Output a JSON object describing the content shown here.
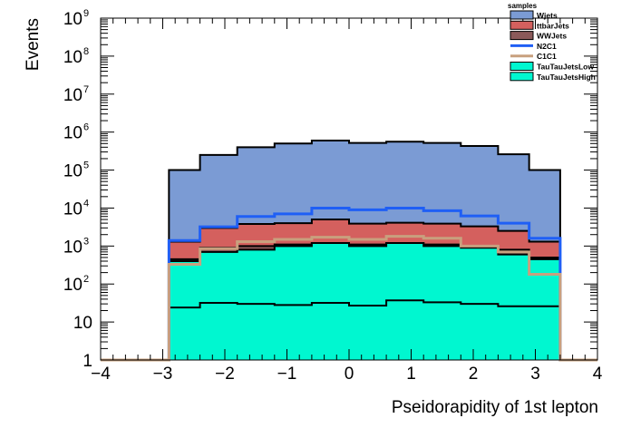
{
  "chart_data": {
    "type": "area",
    "ylabel": "Events",
    "xlabel": "Pseidorapidity of 1st lepton",
    "xlim": [
      -4,
      4
    ],
    "ylim": [
      1,
      1000000000
    ],
    "yscale": "log",
    "x_ticks": [
      "−4",
      "−3",
      "−2",
      "−1",
      "0",
      "1",
      "2",
      "3",
      "4"
    ],
    "y_ticks": [
      {
        "base": "1",
        "exp": "",
        "value": 1
      },
      {
        "base": "10",
        "exp": "",
        "value": 10
      },
      {
        "base": "10",
        "exp": "2",
        "value": 100
      },
      {
        "base": "10",
        "exp": "3",
        "value": 1000
      },
      {
        "base": "10",
        "exp": "4",
        "value": 10000
      },
      {
        "base": "10",
        "exp": "5",
        "value": 100000
      },
      {
        "base": "10",
        "exp": "6",
        "value": 1000000
      },
      {
        "base": "10",
        "exp": "7",
        "value": 10000000
      },
      {
        "base": "10",
        "exp": "8",
        "value": 100000000
      },
      {
        "base": "10",
        "exp": "9",
        "value": 1000000000
      }
    ],
    "bin_edges": [
      -4,
      -3.4,
      -2.9,
      -2.4,
      -1.8,
      -1.2,
      -0.6,
      0,
      0.6,
      1.2,
      1.8,
      2.4,
      2.9,
      3.4,
      4
    ],
    "legend_title": "samples",
    "legend_position": "top-right",
    "series": [
      {
        "name": "Wjets",
        "kind": "stack",
        "color": "#7b9bd4",
        "values": [
          0,
          0,
          100000,
          250000,
          400000,
          500000,
          600000,
          520000,
          560000,
          520000,
          430000,
          260000,
          100000,
          0,
          0
        ]
      },
      {
        "name": "ttbarJets",
        "kind": "stack",
        "color": "#d4605e",
        "values": [
          0,
          0,
          1300,
          3000,
          3800,
          4000,
          5000,
          3900,
          4100,
          3900,
          3300,
          2500,
          1300,
          0,
          0
        ]
      },
      {
        "name": "WWJets",
        "kind": "stack",
        "color": "#8b5a5a",
        "values": [
          0,
          0,
          450,
          900,
          1000,
          1100,
          1200,
          1100,
          1200,
          1100,
          1000,
          800,
          500,
          0,
          0
        ]
      },
      {
        "name": "N2C1",
        "kind": "line",
        "color": "#1f5ff5",
        "values": [
          0,
          0,
          1400,
          3200,
          6000,
          7000,
          10000,
          9000,
          10000,
          8500,
          6200,
          4000,
          1600,
          0,
          0
        ]
      },
      {
        "name": "C1C1",
        "kind": "line",
        "color": "#c8a07e",
        "values": [
          0,
          0,
          330,
          850,
          1300,
          1500,
          1700,
          1500,
          1800,
          1600,
          1000,
          700,
          180,
          0,
          0
        ]
      },
      {
        "name": "TauTauJetsLow",
        "kind": "stack",
        "color": "#00f7d0",
        "values": [
          0,
          0,
          400,
          700,
          800,
          1000,
          1200,
          1000,
          1200,
          1000,
          900,
          600,
          450,
          0,
          0
        ]
      },
      {
        "name": "TauTauJetsHigh",
        "kind": "stack",
        "color": "#00f7d0",
        "values": [
          0,
          0,
          24,
          32,
          30,
          28,
          32,
          27,
          37,
          33,
          30,
          26,
          26,
          0,
          0
        ]
      }
    ]
  }
}
